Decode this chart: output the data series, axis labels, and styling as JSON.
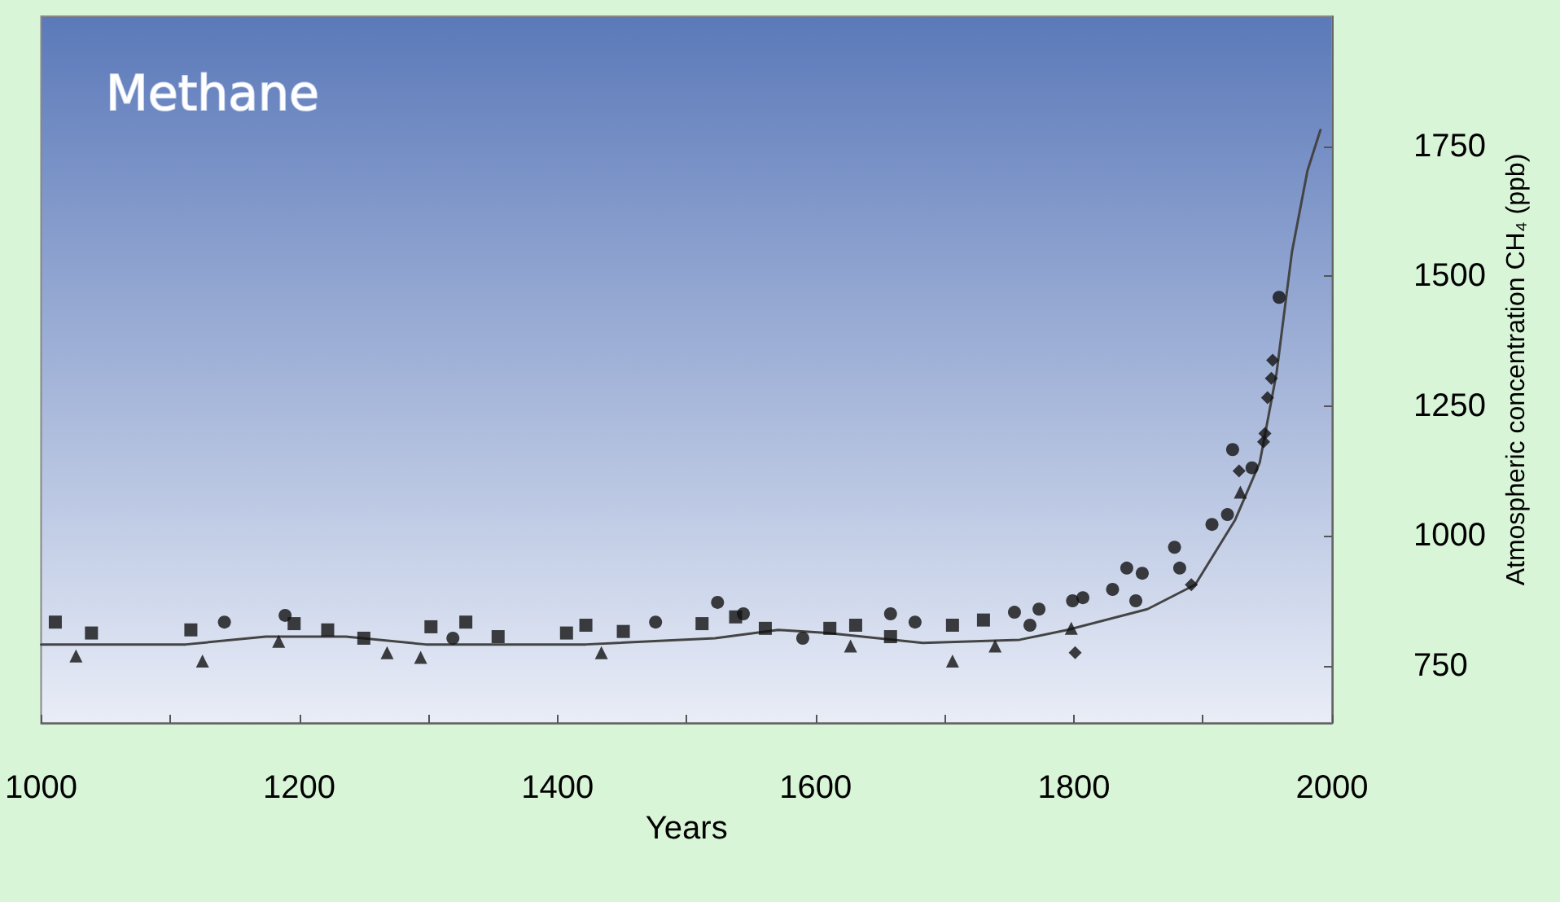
{
  "chart_data": {
    "type": "scatter",
    "title": "Methane",
    "xlabel": "Years",
    "ylabel": "Atmospheric concentration CH₄ (ppb)",
    "xlim": [
      1000,
      2000
    ],
    "ylim": [
      640,
      2000
    ],
    "xticks": [
      1000,
      {
        "value": 1100,
        "label": null
      },
      1200,
      {
        "value": 1300,
        "label": null
      },
      1400,
      {
        "value": 1500,
        "label": null
      },
      1600,
      {
        "value": 1700,
        "label": null
      },
      1800,
      {
        "value": 1900,
        "label": null
      },
      2000
    ],
    "yticks": [
      750,
      1000,
      1250,
      1500,
      1750
    ],
    "grid": false,
    "series": [
      {
        "marker": "square",
        "color": "#111111",
        "x": [
          1011,
          1039,
          1116,
          1196,
          1222,
          1250,
          1302,
          1329,
          1354,
          1407,
          1422,
          1451,
          1512,
          1538,
          1561,
          1611,
          1631,
          1658,
          1706,
          1730
        ],
        "values": [
          834,
          813,
          819,
          831,
          819,
          803,
          825,
          834,
          806,
          813,
          828,
          816,
          831,
          844,
          822,
          822,
          828,
          806,
          828,
          838
        ]
      },
      {
        "marker": "triangle",
        "color": "#111111",
        "x": [
          1027,
          1125,
          1184,
          1268,
          1294,
          1434,
          1627,
          1706,
          1739,
          1798,
          1929
        ],
        "values": [
          769,
          759,
          797,
          775,
          766,
          775,
          788,
          759,
          788,
          822,
          1084
        ]
      },
      {
        "marker": "circle",
        "color": "#111111",
        "x": [
          1142,
          1189,
          1319,
          1476,
          1524,
          1544,
          1590,
          1658,
          1677,
          1754,
          1773,
          1766,
          1799,
          1807,
          1830,
          1841,
          1853,
          1848,
          1878,
          1882,
          1907,
          1919,
          1923,
          1938,
          1959
        ],
        "values": [
          834,
          847,
          803,
          834,
          872,
          850,
          803,
          850,
          834,
          853,
          859,
          828,
          875,
          881,
          897,
          938,
          928,
          875,
          978,
          938,
          1022,
          1041,
          1166,
          1131,
          1459
        ]
      },
      {
        "marker": "diamond",
        "color": "#111111",
        "x": [
          1801,
          1891,
          1928,
          1947,
          1948,
          1950,
          1953,
          1954
        ],
        "values": [
          775,
          906,
          1125,
          1181,
          1197,
          1266,
          1303,
          1338
        ]
      },
      {
        "type": "line",
        "marker": "none",
        "line_style": "solid",
        "color": "#444444",
        "x": [
          1000,
          1112,
          1174,
          1236,
          1298,
          1422,
          1522,
          1571,
          1609,
          1683,
          1758,
          1795,
          1857,
          1894,
          1925,
          1944,
          1957,
          1969,
          1981,
          1991
        ],
        "values": [
          791,
          791,
          806,
          806,
          791,
          791,
          803,
          819,
          813,
          794,
          800,
          819,
          859,
          906,
          1031,
          1141,
          1313,
          1547,
          1703,
          1781
        ]
      }
    ]
  }
}
